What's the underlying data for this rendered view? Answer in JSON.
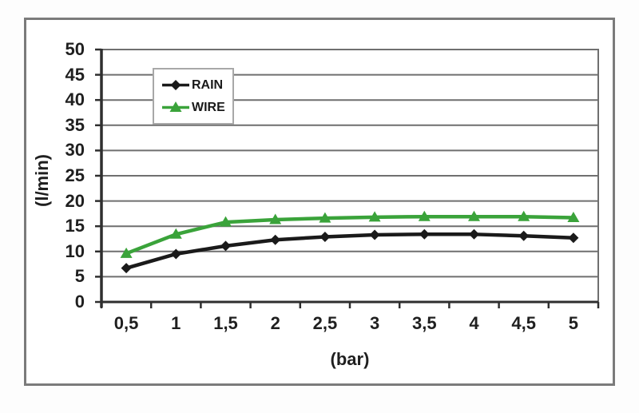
{
  "window": {
    "background": "#fdfdfd",
    "frame_border_color": "#7b7b7b"
  },
  "chart_data": {
    "type": "line",
    "title": "",
    "xlabel": "(bar)",
    "ylabel": "(l/min)",
    "x": [
      0.5,
      1,
      1.5,
      2,
      2.5,
      3,
      3.5,
      4,
      4.5,
      5
    ],
    "x_tick_labels": [
      "0,5",
      "1",
      "1,5",
      "2",
      "2,5",
      "3",
      "3,5",
      "4",
      "4,5",
      "5"
    ],
    "ylim": [
      0,
      50
    ],
    "ytick_step": 5,
    "y_tick_labels": [
      "0",
      "5",
      "10",
      "15",
      "20",
      "25",
      "30",
      "35",
      "40",
      "45",
      "50"
    ],
    "grid": "horizontal",
    "legend_position": "inside-top-left",
    "series": [
      {
        "name": "RAIN",
        "color": "#1a1a1a",
        "marker": "diamond",
        "values": [
          6.7,
          9.5,
          11.1,
          12.3,
          12.9,
          13.3,
          13.4,
          13.4,
          13.1,
          12.7
        ]
      },
      {
        "name": "WIRE",
        "color": "#3aa33a",
        "marker": "triangle",
        "values": [
          9.6,
          13.4,
          15.8,
          16.3,
          16.6,
          16.8,
          16.9,
          16.9,
          16.9,
          16.7
        ]
      }
    ],
    "colors": {
      "gridline": "#6f6f6f",
      "axis": "#2f2f2f",
      "plot_border": "#6f6f6f",
      "tick_text": "#1f1f1f"
    }
  }
}
